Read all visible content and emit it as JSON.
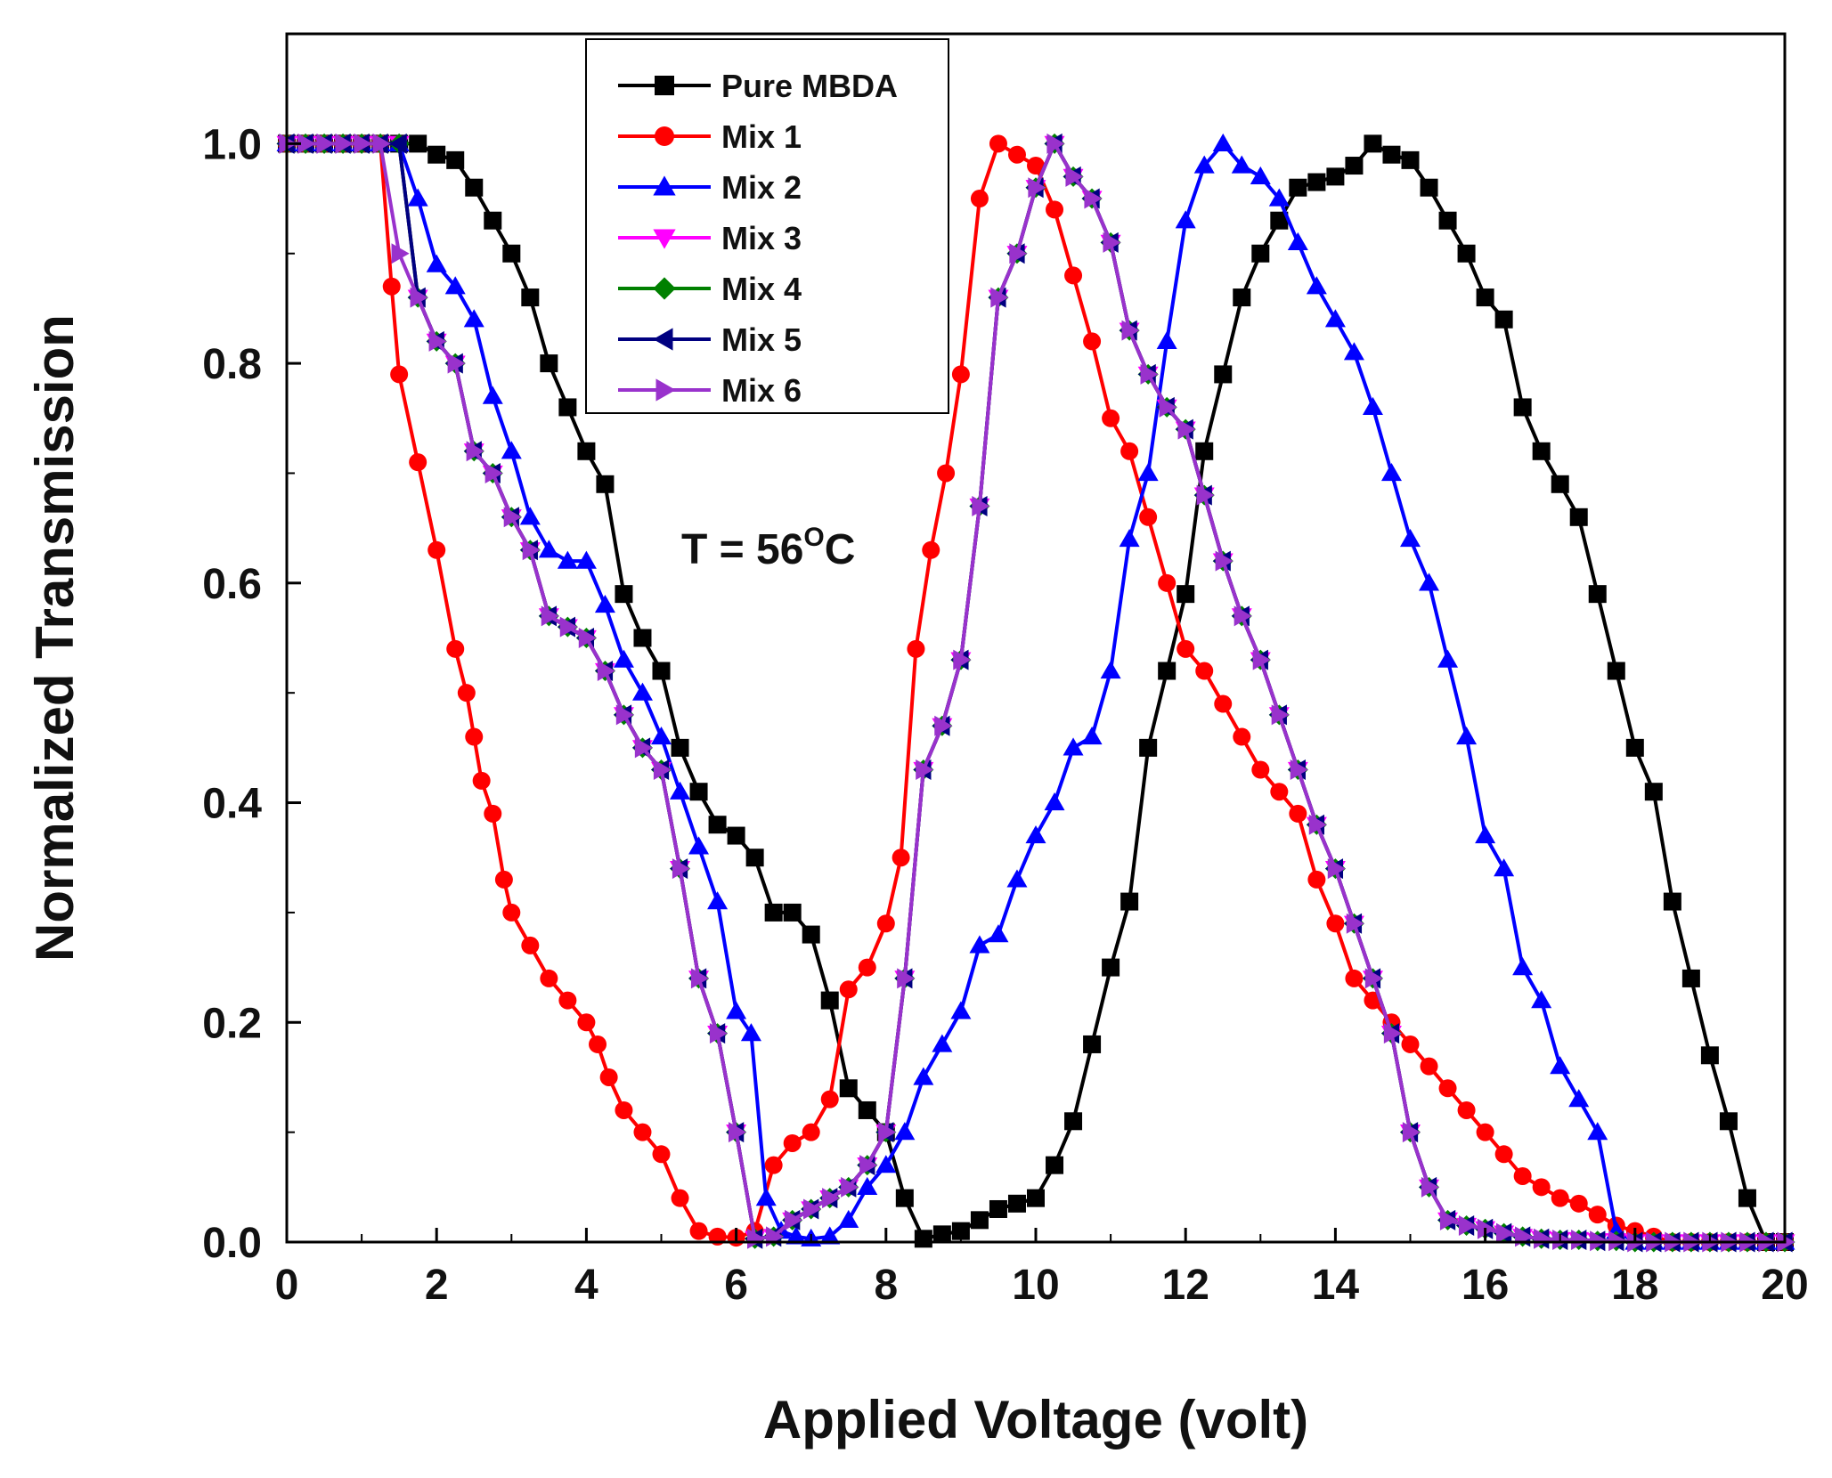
{
  "chart_data": {
    "type": "line",
    "title": "",
    "xlabel": "Applied Voltage (volt)",
    "ylabel": "Normalized Transmission",
    "xlim": [
      0,
      20
    ],
    "ylim": [
      0,
      1.1
    ],
    "xticks": [
      "0",
      "2",
      "4",
      "6",
      "8",
      "10",
      "12",
      "14",
      "16",
      "18",
      "20"
    ],
    "yticks": [
      "0.0",
      "0.2",
      "0.4",
      "0.6",
      "0.8",
      "1.0"
    ],
    "grid": false,
    "legend_position": "top-left",
    "annotation": {
      "prefix": "T = 56",
      "superscript": "O",
      "suffix": "C"
    },
    "series": [
      {
        "name": "Pure MBDA",
        "color": "#000000",
        "marker": "square",
        "x": [
          0,
          0.25,
          0.5,
          0.75,
          1.0,
          1.25,
          1.5,
          1.75,
          2.0,
          2.25,
          2.5,
          2.75,
          3.0,
          3.25,
          3.5,
          3.75,
          4.0,
          4.25,
          4.5,
          4.75,
          5.0,
          5.25,
          5.5,
          5.75,
          6.0,
          6.25,
          6.5,
          6.75,
          7.0,
          7.25,
          7.5,
          7.75,
          8.0,
          8.25,
          8.5,
          8.75,
          9.0,
          9.25,
          9.5,
          9.75,
          10.0,
          10.25,
          10.5,
          10.75,
          11.0,
          11.25,
          11.5,
          11.75,
          12.0,
          12.25,
          12.5,
          12.75,
          13.0,
          13.25,
          13.5,
          13.75,
          14.0,
          14.25,
          14.5,
          14.75,
          15.0,
          15.25,
          15.5,
          15.75,
          16.0,
          16.25,
          16.5,
          16.75,
          17.0,
          17.25,
          17.5,
          17.75,
          18.0,
          18.25,
          18.5,
          18.75,
          19.0,
          19.25,
          19.5,
          19.75,
          20.0
        ],
        "y": [
          1.0,
          1.0,
          1.0,
          1.0,
          1.0,
          1.0,
          1.0,
          1.0,
          0.99,
          0.985,
          0.96,
          0.93,
          0.9,
          0.86,
          0.8,
          0.76,
          0.72,
          0.69,
          0.59,
          0.55,
          0.52,
          0.45,
          0.41,
          0.38,
          0.37,
          0.35,
          0.3,
          0.3,
          0.28,
          0.22,
          0.14,
          0.12,
          0.1,
          0.04,
          0.003,
          0.007,
          0.01,
          0.02,
          0.03,
          0.035,
          0.04,
          0.07,
          0.11,
          0.18,
          0.25,
          0.31,
          0.45,
          0.52,
          0.59,
          0.72,
          0.79,
          0.86,
          0.9,
          0.93,
          0.96,
          0.965,
          0.97,
          0.98,
          1.0,
          0.99,
          0.985,
          0.96,
          0.93,
          0.9,
          0.86,
          0.84,
          0.76,
          0.72,
          0.69,
          0.66,
          0.59,
          0.52,
          0.45,
          0.41,
          0.31,
          0.24,
          0.17,
          0.11,
          0.04,
          0.0,
          0.0
        ]
      },
      {
        "name": "Mix 1",
        "color": "#ff0000",
        "marker": "circle",
        "x": [
          0,
          0.25,
          0.5,
          0.75,
          1.0,
          1.25,
          1.4,
          1.5,
          1.75,
          2.0,
          2.25,
          2.4,
          2.5,
          2.6,
          2.75,
          2.9,
          3.0,
          3.25,
          3.5,
          3.75,
          4.0,
          4.15,
          4.3,
          4.5,
          4.75,
          5.0,
          5.25,
          5.5,
          5.75,
          6.0,
          6.25,
          6.5,
          6.75,
          7.0,
          7.25,
          7.5,
          7.75,
          8.0,
          8.2,
          8.4,
          8.6,
          8.8,
          9.0,
          9.25,
          9.5,
          9.75,
          10.0,
          10.25,
          10.5,
          10.75,
          11.0,
          11.25,
          11.5,
          11.75,
          12.0,
          12.25,
          12.5,
          12.75,
          13.0,
          13.25,
          13.5,
          13.75,
          14.0,
          14.25,
          14.5,
          14.75,
          15.0,
          15.25,
          15.5,
          15.75,
          16.0,
          16.25,
          16.5,
          16.75,
          17.0,
          17.25,
          17.5,
          17.75,
          18.0,
          18.25,
          18.5,
          18.75,
          19.0,
          19.25,
          19.5,
          19.75,
          20.0
        ],
        "y": [
          1.0,
          1.0,
          1.0,
          1.0,
          1.0,
          1.0,
          0.87,
          0.79,
          0.71,
          0.63,
          0.54,
          0.5,
          0.46,
          0.42,
          0.39,
          0.33,
          0.3,
          0.27,
          0.24,
          0.22,
          0.2,
          0.18,
          0.15,
          0.12,
          0.1,
          0.08,
          0.04,
          0.01,
          0.005,
          0.004,
          0.01,
          0.07,
          0.09,
          0.1,
          0.13,
          0.23,
          0.25,
          0.29,
          0.35,
          0.54,
          0.63,
          0.7,
          0.79,
          0.95,
          1.0,
          0.99,
          0.98,
          0.94,
          0.88,
          0.82,
          0.75,
          0.72,
          0.66,
          0.6,
          0.54,
          0.52,
          0.49,
          0.46,
          0.43,
          0.41,
          0.39,
          0.33,
          0.29,
          0.24,
          0.22,
          0.2,
          0.18,
          0.16,
          0.14,
          0.12,
          0.1,
          0.08,
          0.06,
          0.05,
          0.04,
          0.035,
          0.025,
          0.015,
          0.01,
          0.005,
          0.0,
          0.0,
          0.0,
          0.0,
          0.0,
          0.0,
          0.0
        ]
      },
      {
        "name": "Mix 2",
        "color": "#0000ff",
        "marker": "triangle-up",
        "x": [
          0,
          0.25,
          0.5,
          0.75,
          1.0,
          1.25,
          1.5,
          1.75,
          2.0,
          2.25,
          2.5,
          2.75,
          3.0,
          3.25,
          3.5,
          3.75,
          4.0,
          4.25,
          4.5,
          4.75,
          5.0,
          5.25,
          5.5,
          5.75,
          6.0,
          6.2,
          6.4,
          6.6,
          6.8,
          7.0,
          7.25,
          7.5,
          7.75,
          8.0,
          8.25,
          8.5,
          8.75,
          9.0,
          9.25,
          9.5,
          9.75,
          10.0,
          10.25,
          10.5,
          10.75,
          11.0,
          11.25,
          11.5,
          11.75,
          12.0,
          12.25,
          12.5,
          12.75,
          13.0,
          13.25,
          13.5,
          13.75,
          14.0,
          14.25,
          14.5,
          14.75,
          15.0,
          15.25,
          15.5,
          15.75,
          16.0,
          16.25,
          16.5,
          16.75,
          17.0,
          17.25,
          17.5,
          17.75,
          18.0,
          18.25,
          18.5,
          18.75,
          19.0,
          19.25,
          19.5,
          19.75,
          20.0
        ],
        "y": [
          1.0,
          1.0,
          1.0,
          1.0,
          1.0,
          1.0,
          1.0,
          0.95,
          0.89,
          0.87,
          0.84,
          0.77,
          0.72,
          0.66,
          0.63,
          0.62,
          0.62,
          0.58,
          0.53,
          0.5,
          0.46,
          0.41,
          0.36,
          0.31,
          0.21,
          0.19,
          0.04,
          0.01,
          0.005,
          0.003,
          0.005,
          0.02,
          0.05,
          0.07,
          0.1,
          0.15,
          0.18,
          0.21,
          0.27,
          0.28,
          0.33,
          0.37,
          0.4,
          0.45,
          0.46,
          0.52,
          0.64,
          0.7,
          0.82,
          0.93,
          0.98,
          1.0,
          0.98,
          0.97,
          0.95,
          0.91,
          0.87,
          0.84,
          0.81,
          0.76,
          0.7,
          0.64,
          0.6,
          0.53,
          0.46,
          0.37,
          0.34,
          0.25,
          0.22,
          0.16,
          0.13,
          0.1,
          0.01,
          0.0,
          0.0,
          0.0,
          0.0,
          0.0,
          0.0,
          0.0,
          0.0,
          0.0
        ]
      },
      {
        "name": "Mix 3",
        "color": "#ff00ff",
        "marker": "triangle-down",
        "x": [
          0,
          0.25,
          0.5,
          0.75,
          1.0,
          1.25,
          1.5,
          1.75,
          2.0,
          2.25,
          2.5,
          2.75,
          3.0,
          3.25,
          3.5,
          3.75,
          4.0,
          4.25,
          4.5,
          4.75,
          5.0,
          5.25,
          5.5,
          5.75,
          6.0,
          6.25,
          6.5,
          6.75,
          7.0,
          7.25,
          7.5,
          7.75,
          8.0,
          8.25,
          8.5,
          8.75,
          9.0,
          9.25,
          9.5,
          9.75,
          10.0,
          10.25,
          10.5,
          10.75,
          11.0,
          11.25,
          11.5,
          11.75,
          12.0,
          12.25,
          12.5,
          12.75,
          13.0,
          13.25,
          13.5,
          13.75,
          14.0,
          14.25,
          14.5,
          14.75,
          15.0,
          15.25,
          15.5,
          15.75,
          16.0,
          16.25,
          16.5,
          16.75,
          17.0,
          17.25,
          17.5,
          17.75,
          18.0,
          18.25,
          18.5,
          18.75,
          19.0,
          19.25,
          19.5,
          19.75,
          20.0
        ],
        "y": [
          1.0,
          1.0,
          1.0,
          1.0,
          1.0,
          1.0,
          1.0,
          0.86,
          0.82,
          0.8,
          0.72,
          0.7,
          0.66,
          0.63,
          0.57,
          0.56,
          0.55,
          0.52,
          0.48,
          0.45,
          0.43,
          0.34,
          0.24,
          0.19,
          0.1,
          0.003,
          0.005,
          0.02,
          0.03,
          0.04,
          0.05,
          0.07,
          0.1,
          0.24,
          0.43,
          0.47,
          0.53,
          0.67,
          0.86,
          0.9,
          0.96,
          1.0,
          0.97,
          0.95,
          0.91,
          0.83,
          0.79,
          0.76,
          0.74,
          0.68,
          0.62,
          0.57,
          0.53,
          0.48,
          0.43,
          0.38,
          0.34,
          0.29,
          0.24,
          0.19,
          0.1,
          0.05,
          0.02,
          0.015,
          0.012,
          0.008,
          0.005,
          0.003,
          0.002,
          0.002,
          0.001,
          0.001,
          0.0,
          0.0,
          0.0,
          0.0,
          0.0,
          0.0,
          0.0,
          0.0,
          0.0
        ]
      },
      {
        "name": "Mix 4",
        "color": "#008000",
        "marker": "diamond",
        "x": [
          0,
          0.25,
          0.5,
          0.75,
          1.0,
          1.25,
          1.5,
          1.75,
          2.0,
          2.25,
          2.5,
          2.75,
          3.0,
          3.25,
          3.5,
          3.75,
          4.0,
          4.25,
          4.5,
          4.75,
          5.0,
          5.25,
          5.5,
          5.75,
          6.0,
          6.25,
          6.5,
          6.75,
          7.0,
          7.25,
          7.5,
          7.75,
          8.0,
          8.25,
          8.5,
          8.75,
          9.0,
          9.25,
          9.5,
          9.75,
          10.0,
          10.25,
          10.5,
          10.75,
          11.0,
          11.25,
          11.5,
          11.75,
          12.0,
          12.25,
          12.5,
          12.75,
          13.0,
          13.25,
          13.5,
          13.75,
          14.0,
          14.25,
          14.5,
          14.75,
          15.0,
          15.25,
          15.5,
          15.75,
          16.0,
          16.25,
          16.5,
          16.75,
          17.0,
          17.25,
          17.5,
          17.75,
          18.0,
          18.25,
          18.5,
          18.75,
          19.0,
          19.25,
          19.5,
          19.75,
          20.0
        ],
        "y": [
          1.0,
          1.0,
          1.0,
          1.0,
          1.0,
          1.0,
          1.0,
          0.86,
          0.82,
          0.8,
          0.72,
          0.7,
          0.66,
          0.63,
          0.57,
          0.56,
          0.55,
          0.52,
          0.48,
          0.45,
          0.43,
          0.34,
          0.24,
          0.19,
          0.1,
          0.003,
          0.005,
          0.02,
          0.03,
          0.04,
          0.05,
          0.07,
          0.1,
          0.24,
          0.43,
          0.47,
          0.53,
          0.67,
          0.86,
          0.9,
          0.96,
          1.0,
          0.97,
          0.95,
          0.91,
          0.83,
          0.79,
          0.76,
          0.74,
          0.68,
          0.62,
          0.57,
          0.53,
          0.48,
          0.43,
          0.38,
          0.34,
          0.29,
          0.24,
          0.19,
          0.1,
          0.05,
          0.02,
          0.015,
          0.012,
          0.008,
          0.005,
          0.003,
          0.002,
          0.002,
          0.001,
          0.001,
          0.0,
          0.0,
          0.0,
          0.0,
          0.0,
          0.0,
          0.0,
          0.0,
          0.0
        ]
      },
      {
        "name": "Mix 5",
        "color": "#000080",
        "marker": "triangle-left",
        "x": [
          0,
          0.25,
          0.5,
          0.75,
          1.0,
          1.25,
          1.5,
          1.75,
          2.0,
          2.25,
          2.5,
          2.75,
          3.0,
          3.25,
          3.5,
          3.75,
          4.0,
          4.25,
          4.5,
          4.75,
          5.0,
          5.25,
          5.5,
          5.75,
          6.0,
          6.25,
          6.5,
          6.75,
          7.0,
          7.25,
          7.5,
          7.75,
          8.0,
          8.25,
          8.5,
          8.75,
          9.0,
          9.25,
          9.5,
          9.75,
          10.0,
          10.25,
          10.5,
          10.75,
          11.0,
          11.25,
          11.5,
          11.75,
          12.0,
          12.25,
          12.5,
          12.75,
          13.0,
          13.25,
          13.5,
          13.75,
          14.0,
          14.25,
          14.5,
          14.75,
          15.0,
          15.25,
          15.5,
          15.75,
          16.0,
          16.25,
          16.5,
          16.75,
          17.0,
          17.25,
          17.5,
          17.75,
          18.0,
          18.25,
          18.5,
          18.75,
          19.0,
          19.25,
          19.5,
          19.75,
          20.0
        ],
        "y": [
          1.0,
          1.0,
          1.0,
          1.0,
          1.0,
          1.0,
          1.0,
          0.86,
          0.82,
          0.8,
          0.72,
          0.7,
          0.66,
          0.63,
          0.57,
          0.56,
          0.55,
          0.52,
          0.48,
          0.45,
          0.43,
          0.34,
          0.24,
          0.19,
          0.1,
          0.003,
          0.005,
          0.02,
          0.03,
          0.04,
          0.05,
          0.07,
          0.1,
          0.24,
          0.43,
          0.47,
          0.53,
          0.67,
          0.86,
          0.9,
          0.96,
          1.0,
          0.97,
          0.95,
          0.91,
          0.83,
          0.79,
          0.76,
          0.74,
          0.68,
          0.62,
          0.57,
          0.53,
          0.48,
          0.43,
          0.38,
          0.34,
          0.29,
          0.24,
          0.19,
          0.1,
          0.05,
          0.02,
          0.015,
          0.012,
          0.008,
          0.005,
          0.003,
          0.002,
          0.002,
          0.001,
          0.001,
          0.0,
          0.0,
          0.0,
          0.0,
          0.0,
          0.0,
          0.0,
          0.0,
          0.0
        ]
      },
      {
        "name": "Mix 6",
        "color": "#9932cc",
        "marker": "triangle-right",
        "x": [
          0,
          0.25,
          0.5,
          0.75,
          1.0,
          1.25,
          1.5,
          1.75,
          2.0,
          2.25,
          2.5,
          2.75,
          3.0,
          3.25,
          3.5,
          3.75,
          4.0,
          4.25,
          4.5,
          4.75,
          5.0,
          5.25,
          5.5,
          5.75,
          6.0,
          6.25,
          6.5,
          6.75,
          7.0,
          7.25,
          7.5,
          7.75,
          8.0,
          8.25,
          8.5,
          8.75,
          9.0,
          9.25,
          9.5,
          9.75,
          10.0,
          10.25,
          10.5,
          10.75,
          11.0,
          11.25,
          11.5,
          11.75,
          12.0,
          12.25,
          12.5,
          12.75,
          13.0,
          13.25,
          13.5,
          13.75,
          14.0,
          14.25,
          14.5,
          14.75,
          15.0,
          15.25,
          15.5,
          15.75,
          16.0,
          16.25,
          16.5,
          16.75,
          17.0,
          17.25,
          17.5,
          17.75,
          18.0,
          18.25,
          18.5,
          18.75,
          19.0,
          19.25,
          19.5,
          19.75,
          20.0
        ],
        "y": [
          1.0,
          1.0,
          1.0,
          1.0,
          1.0,
          1.0,
          0.9,
          0.86,
          0.82,
          0.8,
          0.72,
          0.7,
          0.66,
          0.63,
          0.57,
          0.56,
          0.55,
          0.52,
          0.48,
          0.45,
          0.43,
          0.34,
          0.24,
          0.19,
          0.1,
          0.003,
          0.005,
          0.02,
          0.03,
          0.04,
          0.05,
          0.07,
          0.1,
          0.24,
          0.43,
          0.47,
          0.53,
          0.67,
          0.86,
          0.9,
          0.96,
          1.0,
          0.97,
          0.95,
          0.91,
          0.83,
          0.79,
          0.76,
          0.74,
          0.68,
          0.62,
          0.57,
          0.53,
          0.48,
          0.43,
          0.38,
          0.34,
          0.29,
          0.24,
          0.19,
          0.1,
          0.05,
          0.02,
          0.015,
          0.012,
          0.008,
          0.005,
          0.003,
          0.002,
          0.002,
          0.001,
          0.001,
          0.0,
          0.0,
          0.0,
          0.0,
          0.0,
          0.0,
          0.0,
          0.0,
          0.0
        ]
      }
    ]
  }
}
